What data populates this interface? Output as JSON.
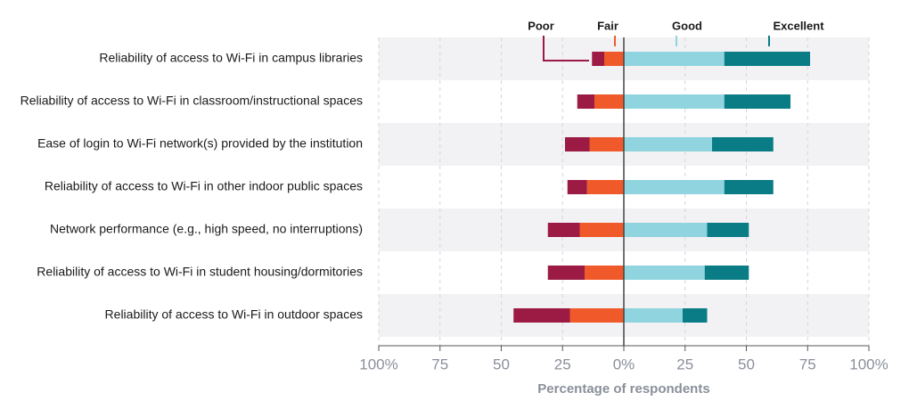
{
  "chart_data": {
    "type": "diverging_bar",
    "x_label": "Percentage of respondents",
    "categories": [
      "Reliability of access to Wi-Fi in campus libraries",
      "Reliability of access to Wi-Fi in classroom/instructional spaces",
      "Ease of login to Wi-Fi network(s) provided by the institution",
      "Reliability of access to Wi-Fi in other indoor public spaces",
      "Network performance (e.g., high speed, no interruptions)",
      "Reliability of access to Wi-Fi in student housing/dormitories",
      "Reliability of access to Wi-Fi in outdoor spaces"
    ],
    "series": [
      {
        "name": "Poor",
        "color": "#9b1b45",
        "values": [
          -5,
          -7,
          -10,
          -8,
          -13,
          -15,
          -23
        ]
      },
      {
        "name": "Fair",
        "color": "#f05a2b",
        "values": [
          -8,
          -12,
          -14,
          -15,
          -18,
          -16,
          -22
        ]
      },
      {
        "name": "Good",
        "color": "#8fd4de",
        "values": [
          41,
          41,
          36,
          41,
          34,
          33,
          24
        ]
      },
      {
        "name": "Excellent",
        "color": "#0a7c86",
        "values": [
          35,
          27,
          25,
          20,
          17,
          18,
          10
        ]
      }
    ],
    "xlim": [
      -100,
      100
    ],
    "xticks": [
      {
        "value": -100,
        "label": "100%"
      },
      {
        "value": -75,
        "label": "75"
      },
      {
        "value": -50,
        "label": "50"
      },
      {
        "value": -25,
        "label": "25"
      },
      {
        "value": 0,
        "label": "0%"
      },
      {
        "value": 25,
        "label": "25"
      },
      {
        "value": 50,
        "label": "50"
      },
      {
        "value": 75,
        "label": "75"
      },
      {
        "value": 100,
        "label": "100%"
      }
    ],
    "grid": true
  }
}
